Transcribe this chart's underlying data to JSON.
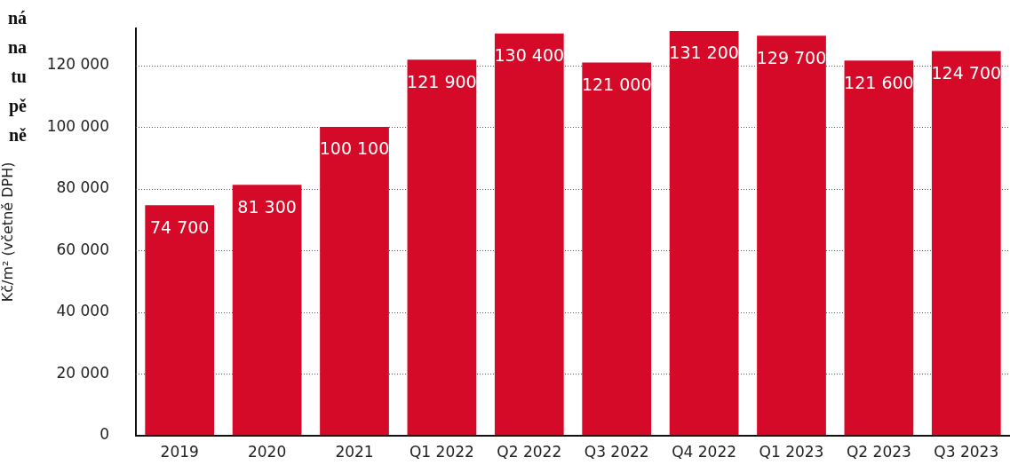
{
  "chart_data": {
    "type": "bar",
    "title": "ná\nna\ntu\npě\nně",
    "ylabel": "Kč/m² (včetně DPH)",
    "categories": [
      "2019",
      "2020",
      "2021",
      "Q1 2022",
      "Q2 2022",
      "Q3 2022",
      "Q4 2022",
      "Q1 2023",
      "Q2 2023",
      "Q3 2023"
    ],
    "values": [
      74700,
      81300,
      100100,
      121900,
      130400,
      121000,
      131200,
      129700,
      121600,
      124700
    ],
    "value_labels": [
      "74 700",
      "81 300",
      "100 100",
      "121 900",
      "130 400",
      "121 000",
      "131 200",
      "129 700",
      "121 600",
      "124 700"
    ],
    "color": "#d50a28",
    "ylim": [
      0,
      132000
    ],
    "yticks": [
      {
        "value": 0,
        "label": "0"
      },
      {
        "value": 20000,
        "label": "20 000"
      },
      {
        "value": 40000,
        "label": "40 000"
      },
      {
        "value": 60000,
        "label": "60 000"
      },
      {
        "value": 80000,
        "label": "80 000"
      },
      {
        "value": 100000,
        "label": "100 000"
      },
      {
        "value": 120000,
        "label": "120 000"
      }
    ],
    "grid": "y",
    "legend": false
  }
}
